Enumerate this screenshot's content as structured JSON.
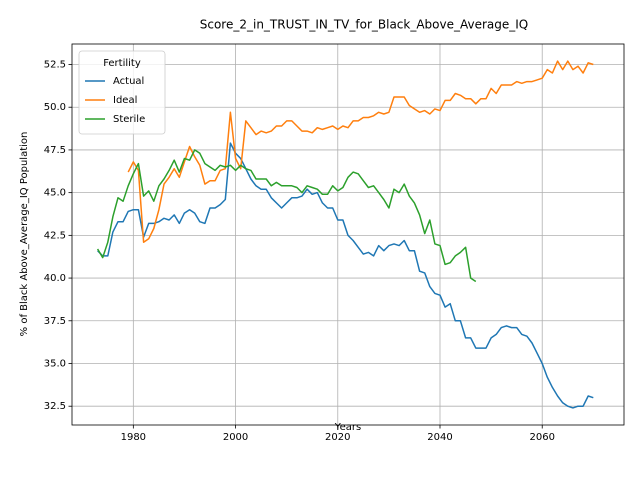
{
  "chart_data": {
    "type": "line",
    "title": "Score_2_in_TRUST_IN_TV_for_Black_Above_Average_IQ",
    "xlabel": "Years",
    "ylabel": "% of Black Above_Average_IQ Population",
    "xlim": [
      1968,
      2076
    ],
    "ylim": [
      31.4,
      53.7
    ],
    "xticks": [
      1980,
      2000,
      2020,
      2040,
      2060
    ],
    "yticks": [
      32.5,
      35.0,
      37.5,
      40.0,
      42.5,
      45.0,
      47.5,
      50.0,
      52.5
    ],
    "xtick_labels": [
      "1980",
      "2000",
      "2020",
      "2040",
      "2060"
    ],
    "ytick_labels": [
      "32.5",
      "35.0",
      "37.5",
      "40.0",
      "42.5",
      "45.0",
      "47.5",
      "50.0",
      "52.5"
    ],
    "grid": true,
    "legend": {
      "title": "Fertility",
      "position": "top-left"
    },
    "series": [
      {
        "name": "Actual",
        "color": "#1f77b4",
        "x": [
          1973,
          1974,
          1975,
          1976,
          1977,
          1978,
          1979,
          1980,
          1981,
          1982,
          1983,
          1984,
          1985,
          1986,
          1987,
          1988,
          1989,
          1990,
          1991,
          1992,
          1993,
          1994,
          1995,
          1996,
          1997,
          1998,
          1999,
          2000,
          2001,
          2002,
          2003,
          2004,
          2005,
          2006,
          2007,
          2008,
          2009,
          2010,
          2011,
          2012,
          2013,
          2014,
          2015,
          2016,
          2017,
          2018,
          2019,
          2020,
          2021,
          2022,
          2023,
          2024,
          2025,
          2026,
          2027,
          2028,
          2029,
          2030,
          2031,
          2032,
          2033,
          2034,
          2035,
          2036,
          2037,
          2038,
          2039,
          2040,
          2041,
          2042,
          2043,
          2044,
          2045,
          2046,
          2047,
          2048,
          2049,
          2050,
          2051,
          2052,
          2053,
          2054,
          2055,
          2056,
          2057,
          2058,
          2059,
          2060,
          2061,
          2062,
          2063,
          2064,
          2065,
          2066,
          2067,
          2068,
          2069,
          2070
        ],
        "values": [
          41.6,
          41.3,
          41.3,
          42.7,
          43.3,
          43.3,
          43.9,
          44.0,
          44.0,
          42.4,
          43.2,
          43.2,
          43.3,
          43.5,
          43.4,
          43.7,
          43.2,
          43.8,
          44.0,
          43.8,
          43.3,
          43.2,
          44.1,
          44.1,
          44.3,
          44.6,
          47.9,
          47.3,
          47.0,
          46.4,
          45.8,
          45.4,
          45.2,
          45.2,
          44.7,
          44.4,
          44.1,
          44.4,
          44.7,
          44.7,
          44.8,
          45.2,
          44.9,
          45.0,
          44.4,
          44.1,
          44.1,
          43.4,
          43.4,
          42.5,
          42.2,
          41.8,
          41.4,
          41.5,
          41.3,
          41.9,
          41.6,
          41.9,
          42.0,
          41.9,
          42.2,
          41.6,
          41.6,
          40.4,
          40.3,
          39.5,
          39.1,
          39.0,
          38.3,
          38.5,
          37.5,
          37.5,
          36.5,
          36.5,
          35.9,
          35.9,
          35.9,
          36.5,
          36.7,
          37.1,
          37.2,
          37.1,
          37.1,
          36.7,
          36.6,
          36.2,
          35.6,
          35.0,
          34.2,
          33.6,
          33.1,
          32.7,
          32.5,
          32.4,
          32.5,
          32.5,
          33.1,
          33.0
        ]
      },
      {
        "name": "Ideal",
        "color": "#ff7f0e",
        "x": [
          1979,
          1980,
          1981,
          1982,
          1983,
          1984,
          1985,
          1986,
          1987,
          1988,
          1989,
          1990,
          1991,
          1992,
          1993,
          1994,
          1995,
          1996,
          1997,
          1998,
          1999,
          2000,
          2001,
          2002,
          2003,
          2004,
          2005,
          2006,
          2007,
          2008,
          2009,
          2010,
          2011,
          2012,
          2013,
          2014,
          2015,
          2016,
          2017,
          2018,
          2019,
          2020,
          2021,
          2022,
          2023,
          2024,
          2025,
          2026,
          2027,
          2028,
          2029,
          2030,
          2031,
          2032,
          2033,
          2034,
          2035,
          2036,
          2037,
          2038,
          2039,
          2040,
          2041,
          2042,
          2043,
          2044,
          2045,
          2046,
          2047,
          2048,
          2049,
          2050,
          2051,
          2052,
          2053,
          2054,
          2055,
          2056,
          2057,
          2058,
          2059,
          2060,
          2061,
          2062,
          2063,
          2064,
          2065,
          2066,
          2067,
          2068,
          2069,
          2070
        ],
        "values": [
          46.2,
          46.8,
          46.3,
          42.1,
          42.3,
          42.9,
          44.0,
          45.5,
          45.9,
          46.4,
          45.9,
          46.8,
          47.7,
          47.1,
          46.6,
          45.5,
          45.7,
          45.7,
          46.3,
          46.4,
          49.7,
          47.0,
          46.4,
          49.2,
          48.8,
          48.4,
          48.6,
          48.5,
          48.6,
          48.9,
          48.9,
          49.2,
          49.2,
          48.9,
          48.6,
          48.6,
          48.5,
          48.8,
          48.7,
          48.8,
          48.9,
          48.7,
          48.9,
          48.8,
          49.2,
          49.2,
          49.4,
          49.4,
          49.5,
          49.7,
          49.6,
          49.7,
          50.6,
          50.6,
          50.6,
          50.1,
          49.9,
          49.7,
          49.8,
          49.6,
          49.9,
          49.8,
          50.4,
          50.4,
          50.8,
          50.7,
          50.5,
          50.5,
          50.2,
          50.5,
          50.5,
          51.1,
          50.8,
          51.3,
          51.3,
          51.3,
          51.5,
          51.4,
          51.5,
          51.5,
          51.6,
          51.7,
          52.2,
          52.0,
          52.7,
          52.2,
          52.7,
          52.2,
          52.4,
          52.0,
          52.6,
          52.5
        ]
      },
      {
        "name": "Sterile",
        "color": "#2ca02c",
        "x": [
          1973,
          1974,
          1975,
          1976,
          1977,
          1978,
          1979,
          1980,
          1981,
          1982,
          1983,
          1984,
          1985,
          1986,
          1987,
          1988,
          1989,
          1990,
          1991,
          1992,
          1993,
          1994,
          1995,
          1996,
          1997,
          1998,
          1999,
          2000,
          2001,
          2002,
          2003,
          2004,
          2005,
          2006,
          2007,
          2008,
          2009,
          2010,
          2011,
          2012,
          2013,
          2014,
          2015,
          2016,
          2017,
          2018,
          2019,
          2020,
          2021,
          2022,
          2023,
          2024,
          2025,
          2026,
          2027,
          2028,
          2029,
          2030,
          2031,
          2032,
          2033,
          2034,
          2035,
          2036,
          2037,
          2038,
          2039,
          2040,
          2041,
          2042,
          2043,
          2044,
          2045,
          2046,
          2047
        ],
        "values": [
          41.7,
          41.2,
          42.1,
          43.6,
          44.7,
          44.5,
          45.4,
          46.1,
          46.7,
          44.8,
          45.1,
          44.5,
          45.4,
          45.8,
          46.3,
          46.9,
          46.2,
          47.0,
          46.9,
          47.5,
          47.3,
          46.7,
          46.5,
          46.3,
          46.6,
          46.5,
          46.6,
          46.3,
          46.6,
          46.4,
          46.3,
          45.8,
          45.8,
          45.8,
          45.4,
          45.6,
          45.4,
          45.4,
          45.4,
          45.3,
          45.0,
          45.4,
          45.3,
          45.2,
          44.9,
          44.9,
          45.4,
          45.1,
          45.3,
          45.9,
          46.2,
          46.1,
          45.7,
          45.3,
          45.4,
          45.0,
          44.6,
          44.1,
          45.2,
          45.0,
          45.5,
          44.8,
          44.4,
          43.7,
          42.6,
          43.4,
          42.0,
          41.9,
          40.8,
          40.9,
          41.3,
          41.5,
          41.8,
          40.0,
          39.8
        ]
      }
    ]
  }
}
